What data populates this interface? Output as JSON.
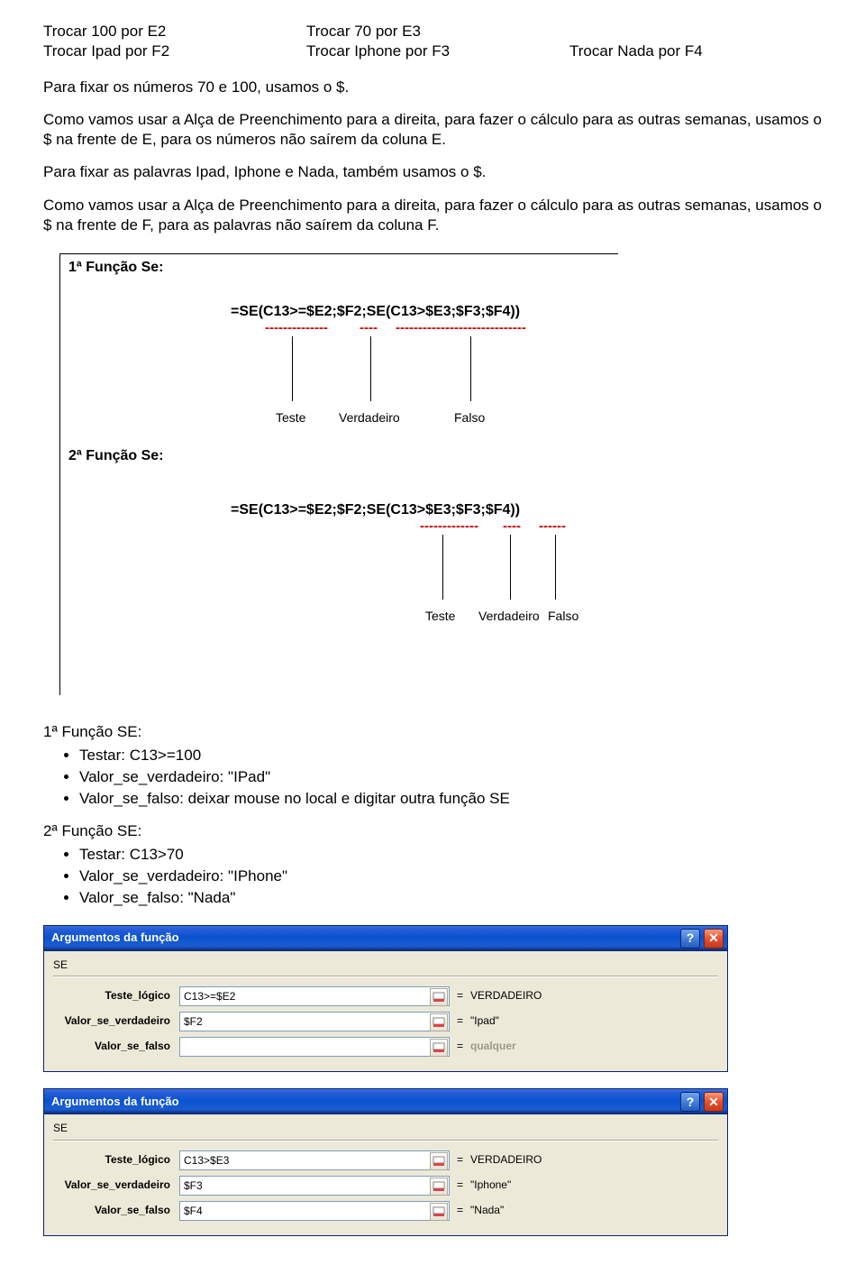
{
  "intro": {
    "a1": "Trocar 100 por E2",
    "a2": "Trocar 70 por E3",
    "b1": "Trocar Ipad por F2",
    "b2": "Trocar Iphone por F3",
    "b3": "Trocar Nada por F4"
  },
  "para1": "Para fixar os números 70 e 100, usamos o $.",
  "para2": "Como vamos usar a Alça de Preenchimento para a direita, para fazer o cálculo para as outras semanas, usamos o $ na frente de E, para os números não saírem da coluna E.",
  "para3": "Para fixar as palavras Ipad, Iphone e Nada, também usamos o $.",
  "para4": "Como vamos usar a Alça de Preenchimento para a direita, para fazer o cálculo para as outras semanas, usamos o $ na frente de F, para as palavras não saírem da coluna F.",
  "diagram": {
    "h1": "1ª Função Se:",
    "formula1": "=SE(C13>=$E2;$F2;SE(C13>$E3;$F3;$F4))",
    "dash1a": "--------------",
    "dash1b": "----",
    "dash1c": "-----------------------------",
    "lbl_teste": "Teste",
    "lbl_verd": "Verdadeiro",
    "lbl_falso": "Falso",
    "h2": "2ª Função Se:",
    "formula2": "=SE(C13>=$E2;$F2;SE(C13>$E3;$F3;$F4))",
    "dash2a": "-------------",
    "dash2b": "----",
    "dash2c": "------"
  },
  "se1": {
    "heading": "1ª Função SE:",
    "items": [
      "Testar: C13>=100",
      "Valor_se_verdadeiro: \"IPad\"",
      "Valor_se_falso: deixar mouse no local e digitar outra função SE"
    ]
  },
  "se2": {
    "heading": "2ª Função SE:",
    "items": [
      "Testar: C13>70",
      "Valor_se_verdadeiro: \"IPhone\"",
      "Valor_se_falso: \"Nada\""
    ]
  },
  "dialog1": {
    "title": "Argumentos da função",
    "se": "SE",
    "rows": [
      {
        "label": "Teste_lógico",
        "value": "C13>=$E2",
        "result": "VERDADEIRO"
      },
      {
        "label": "Valor_se_verdadeiro",
        "value": "$F2",
        "result": "\"Ipad\""
      },
      {
        "label": "Valor_se_falso",
        "value": "",
        "result": "qualquer",
        "dim": true
      }
    ]
  },
  "dialog2": {
    "title": "Argumentos da função",
    "se": "SE",
    "rows": [
      {
        "label": "Teste_lógico",
        "value": "C13>$E3",
        "result": "VERDADEIRO"
      },
      {
        "label": "Valor_se_verdadeiro",
        "value": "$F3",
        "result": "\"Iphone\""
      },
      {
        "label": "Valor_se_falso",
        "value": "$F4",
        "result": "\"Nada\""
      }
    ]
  }
}
